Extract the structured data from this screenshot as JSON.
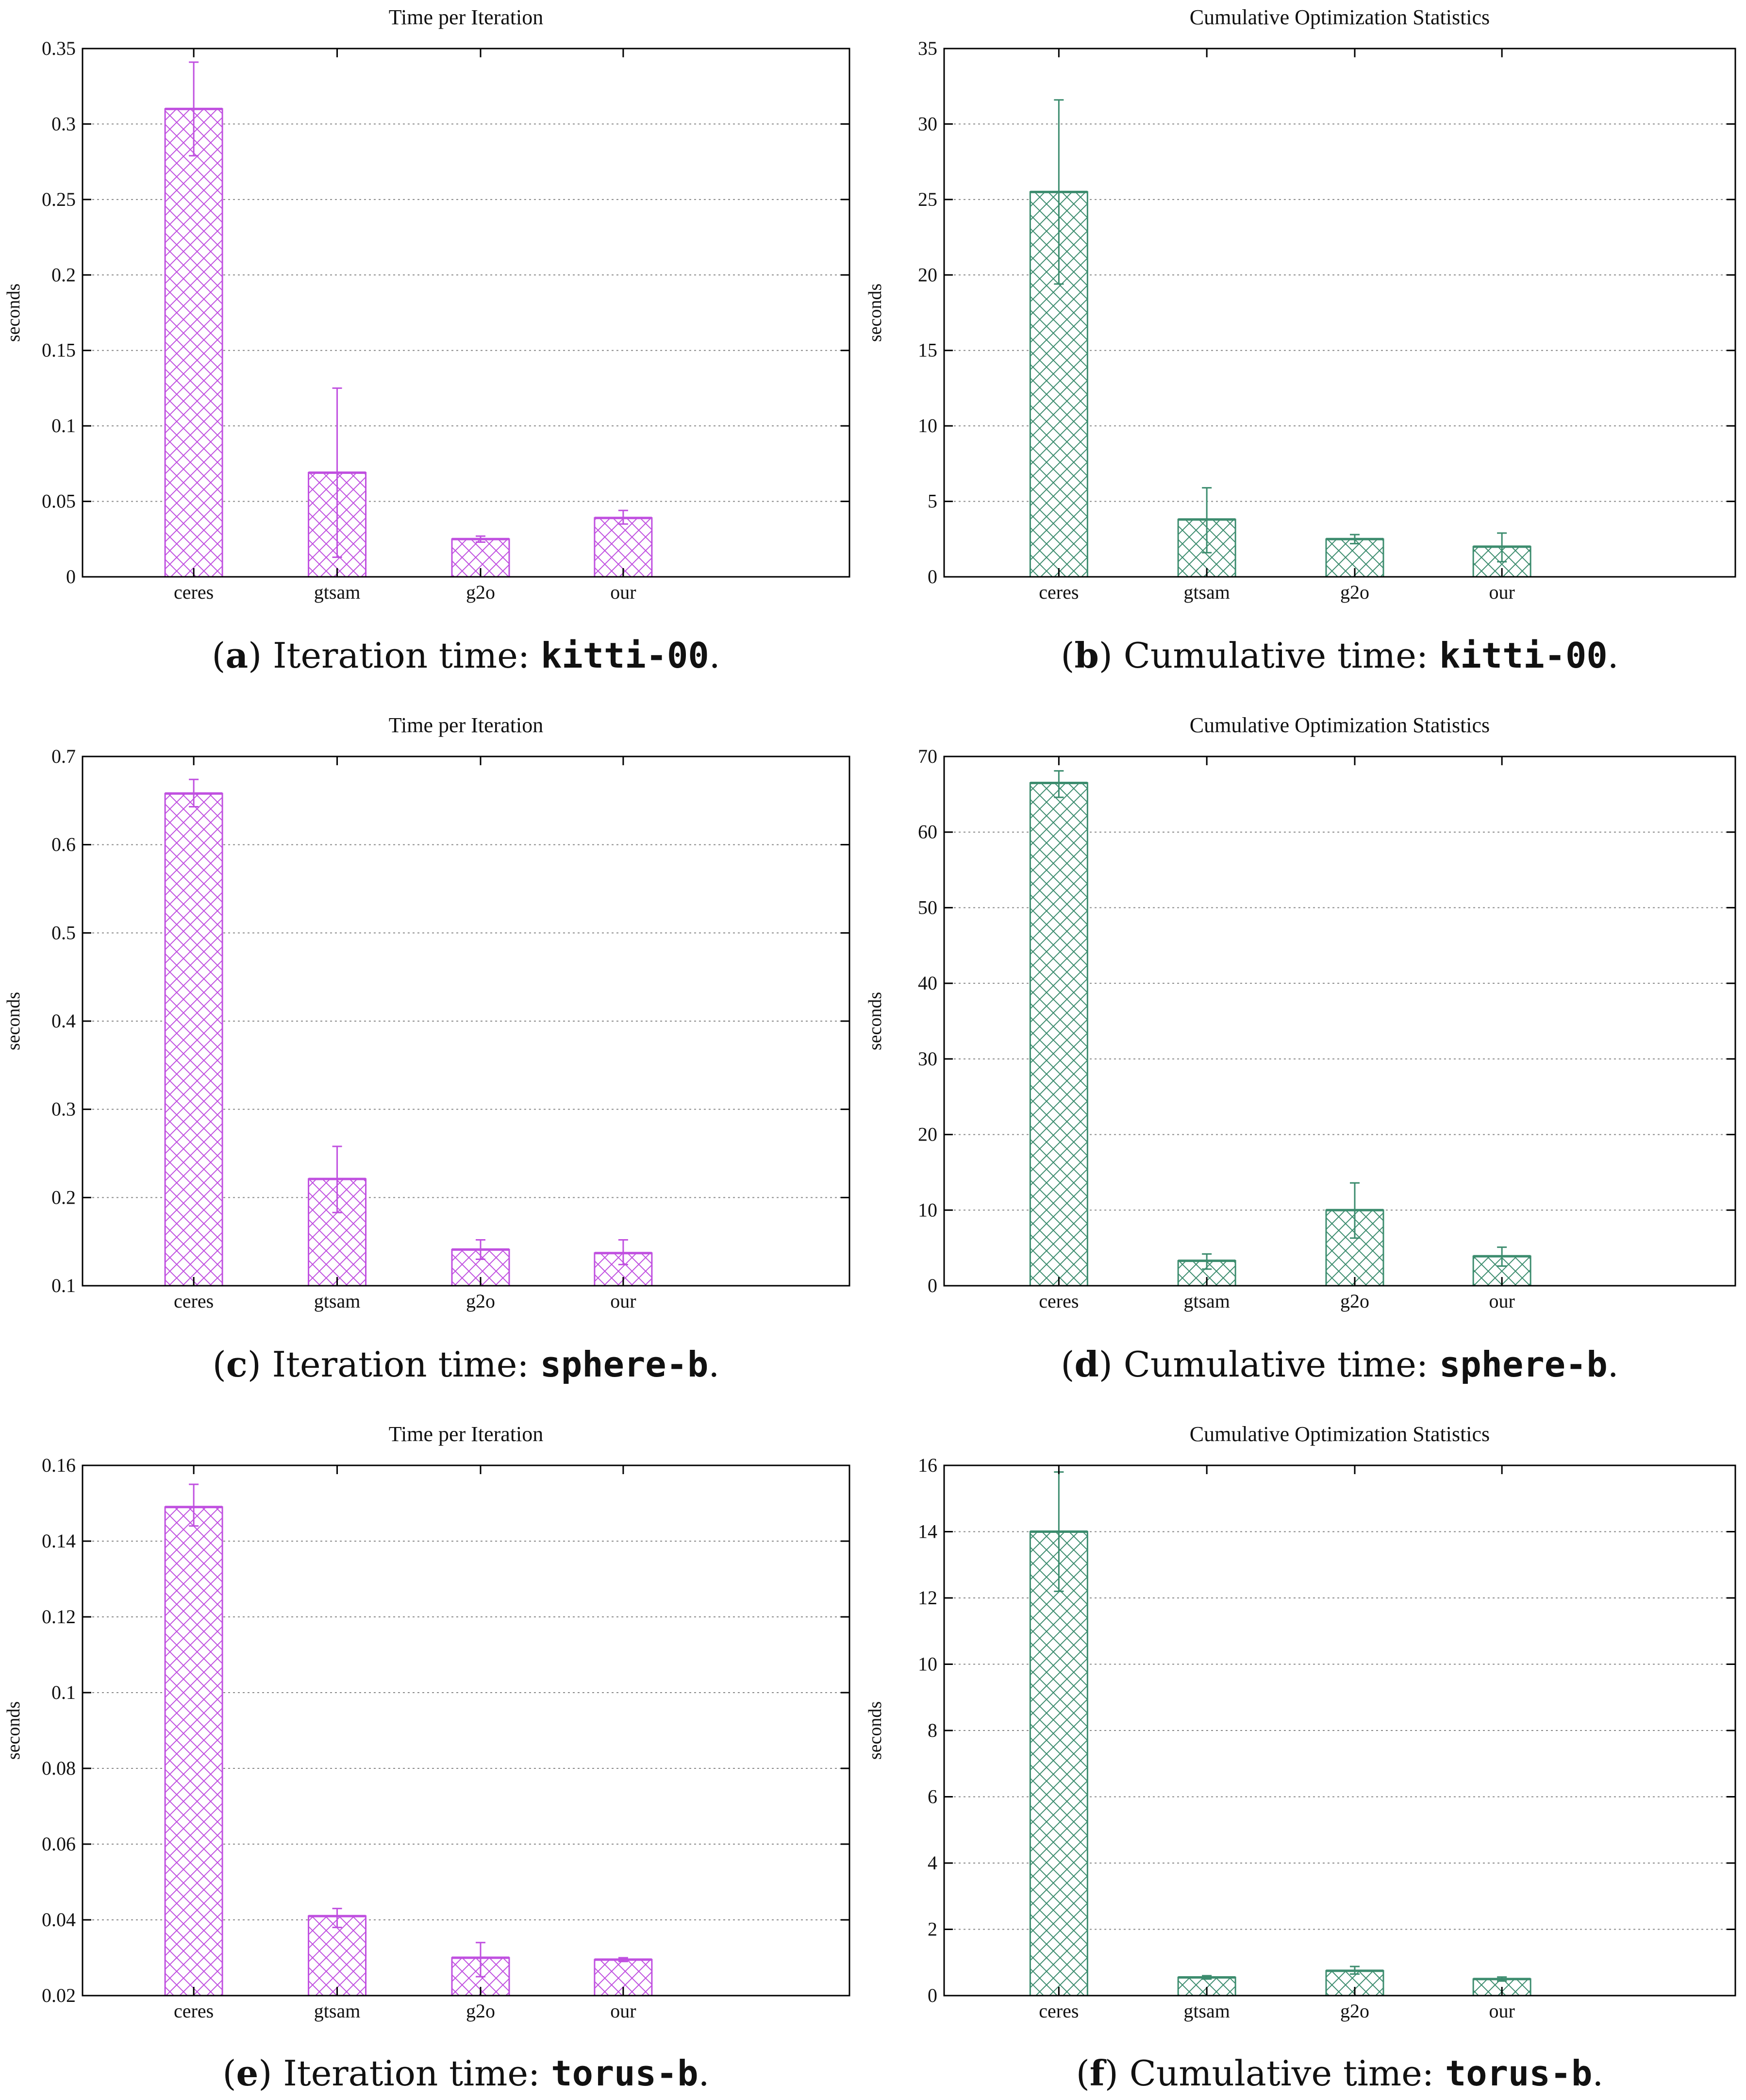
{
  "colors": {
    "magenta": "#c050e0",
    "teal": "#3c8c6e"
  },
  "chart_data": [
    {
      "id": "a",
      "type": "bar",
      "title": "Time per Iteration",
      "ylabel": "seconds",
      "xlabel": "",
      "categories": [
        "ceres",
        "gtsam",
        "g2o",
        "our"
      ],
      "values": [
        0.31,
        0.069,
        0.025,
        0.039
      ],
      "errors": [
        [
          0.279,
          0.341
        ],
        [
          0.013,
          0.125
        ],
        [
          0.023,
          0.027
        ],
        [
          0.035,
          0.044
        ]
      ],
      "ylim": [
        0,
        0.35
      ],
      "yticks": [
        0,
        0.05,
        0.1,
        0.15,
        0.2,
        0.25,
        0.3,
        0.35
      ],
      "ytick_labels": [
        "0",
        "0.05",
        "0.1",
        "0.15",
        "0.2",
        "0.25",
        "0.3",
        "0.35"
      ],
      "grid": true,
      "color": "#c050e0",
      "caption": {
        "letter": "a",
        "text": " Iteration time: ",
        "dataset": "kitti-00",
        "end": "."
      }
    },
    {
      "id": "b",
      "type": "bar",
      "title": "Cumulative Optimization Statistics",
      "ylabel": "seconds",
      "xlabel": "",
      "categories": [
        "ceres",
        "gtsam",
        "g2o",
        "our"
      ],
      "values": [
        25.5,
        3.8,
        2.5,
        2.0
      ],
      "errors": [
        [
          19.4,
          31.6
        ],
        [
          1.6,
          5.9
        ],
        [
          2.2,
          2.8
        ],
        [
          1.0,
          2.9
        ]
      ],
      "ylim": [
        0,
        35
      ],
      "yticks": [
        0,
        5,
        10,
        15,
        20,
        25,
        30,
        35
      ],
      "ytick_labels": [
        "0",
        "5",
        "10",
        "15",
        "20",
        "25",
        "30",
        "35"
      ],
      "grid": true,
      "color": "#3c8c6e",
      "caption": {
        "letter": "b",
        "text": " Cumulative time: ",
        "dataset": "kitti-00",
        "end": "."
      }
    },
    {
      "id": "c",
      "type": "bar",
      "title": "Time per Iteration",
      "ylabel": "seconds",
      "xlabel": "",
      "categories": [
        "ceres",
        "gtsam",
        "g2o",
        "our"
      ],
      "values": [
        0.658,
        0.221,
        0.141,
        0.137
      ],
      "errors": [
        [
          0.643,
          0.674
        ],
        [
          0.183,
          0.258
        ],
        [
          0.13,
          0.152
        ],
        [
          0.124,
          0.152
        ]
      ],
      "ylim": [
        0.1,
        0.7
      ],
      "yticks": [
        0.1,
        0.2,
        0.3,
        0.4,
        0.5,
        0.6,
        0.7
      ],
      "ytick_labels": [
        "0.1",
        "0.2",
        "0.3",
        "0.4",
        "0.5",
        "0.6",
        "0.7"
      ],
      "grid": true,
      "color": "#c050e0",
      "caption": {
        "letter": "c",
        "text": " Iteration time: ",
        "dataset": "sphere-b",
        "end": "."
      }
    },
    {
      "id": "d",
      "type": "bar",
      "title": "Cumulative Optimization Statistics",
      "ylabel": "seconds",
      "xlabel": "",
      "categories": [
        "ceres",
        "gtsam",
        "g2o",
        "our"
      ],
      "values": [
        66.5,
        3.3,
        10.0,
        3.9
      ],
      "errors": [
        [
          64.6,
          68.1
        ],
        [
          2.2,
          4.2
        ],
        [
          6.3,
          13.6
        ],
        [
          2.6,
          5.1
        ]
      ],
      "ylim": [
        0,
        70
      ],
      "yticks": [
        0,
        10,
        20,
        30,
        40,
        50,
        60,
        70
      ],
      "ytick_labels": [
        "0",
        "10",
        "20",
        "30",
        "40",
        "50",
        "60",
        "70"
      ],
      "grid": true,
      "color": "#3c8c6e",
      "caption": {
        "letter": "d",
        "text": " Cumulative time: ",
        "dataset": "sphere-b",
        "end": "."
      }
    },
    {
      "id": "e",
      "type": "bar",
      "title": "Time per Iteration",
      "ylabel": "seconds",
      "xlabel": "",
      "categories": [
        "ceres",
        "gtsam",
        "g2o",
        "our"
      ],
      "values": [
        0.149,
        0.041,
        0.03,
        0.0295
      ],
      "errors": [
        [
          0.144,
          0.155
        ],
        [
          0.038,
          0.043
        ],
        [
          0.025,
          0.034
        ],
        [
          0.029,
          0.03
        ]
      ],
      "ylim": [
        0.02,
        0.16
      ],
      "yticks": [
        0.02,
        0.04,
        0.06,
        0.08,
        0.1,
        0.12,
        0.14,
        0.16
      ],
      "ytick_labels": [
        "0.02",
        "0.04",
        "0.06",
        "0.08",
        "0.1",
        "0.12",
        "0.14",
        "0.16"
      ],
      "grid": true,
      "color": "#c050e0",
      "caption": {
        "letter": "e",
        "text": " Iteration time: ",
        "dataset": "torus-b",
        "end": "."
      }
    },
    {
      "id": "f",
      "type": "bar",
      "title": "Cumulative Optimization Statistics",
      "ylabel": "seconds",
      "xlabel": "",
      "categories": [
        "ceres",
        "gtsam",
        "g2o",
        "our"
      ],
      "values": [
        14.0,
        0.55,
        0.75,
        0.5
      ],
      "errors": [
        [
          12.2,
          15.8
        ],
        [
          0.5,
          0.6
        ],
        [
          0.65,
          0.88
        ],
        [
          0.44,
          0.56
        ]
      ],
      "ylim": [
        0,
        16
      ],
      "yticks": [
        0,
        2,
        4,
        6,
        8,
        10,
        12,
        14,
        16
      ],
      "ytick_labels": [
        "0",
        "2",
        "4",
        "6",
        "8",
        "10",
        "12",
        "14",
        "16"
      ],
      "grid": true,
      "color": "#3c8c6e",
      "caption": {
        "letter": "f",
        "text": " Cumulative time: ",
        "dataset": "torus-b",
        "end": "."
      }
    }
  ]
}
